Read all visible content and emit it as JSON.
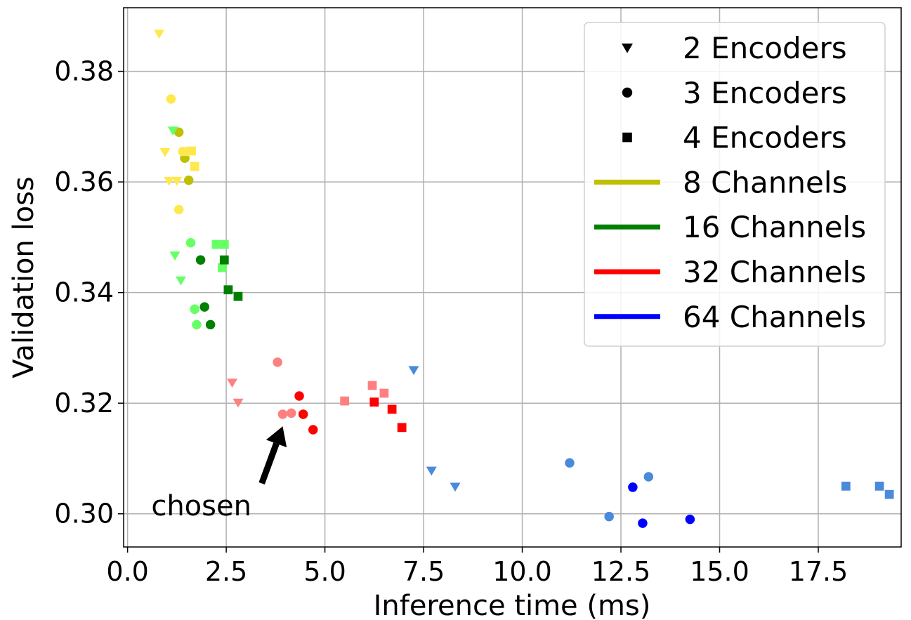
{
  "chart_data": {
    "type": "scatter",
    "xlabel": "Inference time (ms)",
    "ylabel": "Validation loss",
    "xlim": [
      -0.1,
      19.6
    ],
    "ylim": [
      0.294,
      0.3915
    ],
    "xticks": [
      "0.0",
      "2.5",
      "5.0",
      "7.5",
      "10.0",
      "12.5",
      "15.0",
      "17.5"
    ],
    "yticks": [
      "0.30",
      "0.32",
      "0.34",
      "0.36",
      "0.38"
    ],
    "grid": true,
    "legend_position": "top-right",
    "legend": [
      {
        "label": "2 Encoders",
        "kind": "marker",
        "marker": "triangle-down"
      },
      {
        "label": "3 Encoders",
        "kind": "marker",
        "marker": "circle"
      },
      {
        "label": "4 Encoders",
        "kind": "marker",
        "marker": "square"
      },
      {
        "label": "8 Channels",
        "kind": "line",
        "color": "#bfbf00"
      },
      {
        "label": "16 Channels",
        "kind": "line",
        "color": "#008000"
      },
      {
        "label": "32 Channels",
        "kind": "line",
        "color": "#ff0000"
      },
      {
        "label": "64 Channels",
        "kind": "line",
        "color": "#0000ff"
      }
    ],
    "annotation": {
      "text": "chosen",
      "x": 0.6,
      "y": 0.3015,
      "arrow_from": [
        3.4,
        0.3055
      ],
      "arrow_to": [
        3.93,
        0.3158
      ]
    },
    "series": [
      {
        "channels": 8,
        "encoders": 2,
        "color": "#ffe84d",
        "points": [
          [
            0.8,
            0.3868
          ],
          [
            0.95,
            0.3654
          ],
          [
            1.05,
            0.3602
          ],
          [
            1.25,
            0.3602
          ]
        ]
      },
      {
        "channels": 8,
        "encoders": 3,
        "color": "#ffe84d",
        "points": [
          [
            1.1,
            0.375
          ],
          [
            1.3,
            0.355
          ],
          [
            1.4,
            0.3655
          ]
        ]
      },
      {
        "channels": 8,
        "encoders": 3,
        "color": "#bfbf00",
        "points": [
          [
            1.3,
            0.369
          ],
          [
            1.45,
            0.3643
          ],
          [
            1.55,
            0.3603
          ]
        ]
      },
      {
        "channels": 8,
        "encoders": 4,
        "color": "#ffe84d",
        "points": [
          [
            1.45,
            0.3655
          ],
          [
            1.62,
            0.3656
          ],
          [
            1.7,
            0.3628
          ]
        ]
      },
      {
        "channels": 16,
        "encoders": 2,
        "color": "#66ff66",
        "points": [
          [
            1.15,
            0.3693
          ],
          [
            1.2,
            0.3467
          ],
          [
            1.35,
            0.3422
          ]
        ]
      },
      {
        "channels": 16,
        "encoders": 3,
        "color": "#66ff66",
        "points": [
          [
            1.6,
            0.349
          ],
          [
            1.7,
            0.337
          ],
          [
            1.75,
            0.3342
          ]
        ]
      },
      {
        "channels": 16,
        "encoders": 3,
        "color": "#008000",
        "points": [
          [
            1.85,
            0.3459
          ],
          [
            1.95,
            0.3374
          ],
          [
            2.1,
            0.3342
          ]
        ]
      },
      {
        "channels": 16,
        "encoders": 4,
        "color": "#66ff66",
        "points": [
          [
            2.25,
            0.3487
          ],
          [
            2.45,
            0.3487
          ],
          [
            2.4,
            0.3445
          ]
        ]
      },
      {
        "channels": 16,
        "encoders": 4,
        "color": "#008000",
        "points": [
          [
            2.45,
            0.3459
          ],
          [
            2.55,
            0.3405
          ],
          [
            2.8,
            0.3393
          ]
        ]
      },
      {
        "channels": 32,
        "encoders": 2,
        "color": "#ff8080",
        "points": [
          [
            2.65,
            0.3237
          ],
          [
            2.8,
            0.3201
          ]
        ]
      },
      {
        "channels": 32,
        "encoders": 3,
        "color": "#ff8080",
        "points": [
          [
            3.8,
            0.3274
          ],
          [
            3.93,
            0.318
          ],
          [
            4.15,
            0.3182
          ]
        ]
      },
      {
        "channels": 32,
        "encoders": 3,
        "color": "#ff0000",
        "points": [
          [
            4.35,
            0.3213
          ],
          [
            4.45,
            0.318
          ],
          [
            4.7,
            0.3152
          ]
        ]
      },
      {
        "channels": 32,
        "encoders": 4,
        "color": "#ff8080",
        "points": [
          [
            5.5,
            0.3204
          ],
          [
            6.2,
            0.3232
          ],
          [
            6.5,
            0.3218
          ]
        ]
      },
      {
        "channels": 32,
        "encoders": 4,
        "color": "#ff0000",
        "points": [
          [
            6.25,
            0.3202
          ],
          [
            6.7,
            0.3189
          ],
          [
            6.95,
            0.3156
          ]
        ]
      },
      {
        "channels": 64,
        "encoders": 2,
        "color": "#4a8adb",
        "points": [
          [
            7.25,
            0.326
          ],
          [
            7.7,
            0.3078
          ],
          [
            8.3,
            0.3049
          ]
        ]
      },
      {
        "channels": 64,
        "encoders": 3,
        "color": "#4a8adb",
        "points": [
          [
            11.2,
            0.3092
          ],
          [
            12.2,
            0.2995
          ],
          [
            13.2,
            0.3067
          ]
        ]
      },
      {
        "channels": 64,
        "encoders": 3,
        "color": "#0000ff",
        "points": [
          [
            12.8,
            0.3048
          ],
          [
            13.05,
            0.2983
          ],
          [
            14.25,
            0.299
          ]
        ]
      },
      {
        "channels": 64,
        "encoders": 4,
        "color": "#4a8adb",
        "points": [
          [
            18.2,
            0.305
          ],
          [
            19.05,
            0.305
          ],
          [
            19.3,
            0.3035
          ]
        ]
      }
    ]
  }
}
